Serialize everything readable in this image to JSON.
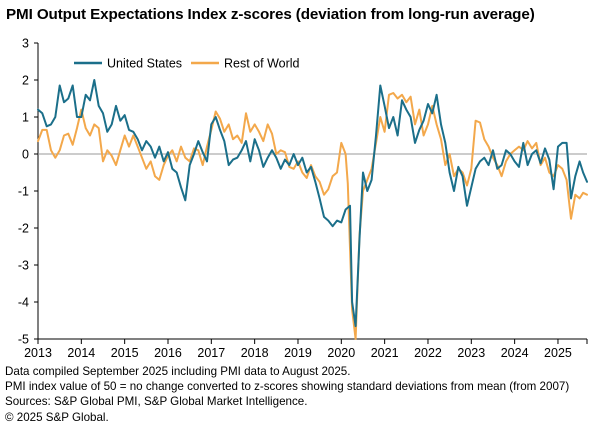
{
  "chart_data": {
    "type": "line",
    "title": "PMI Output Expectations Index z-scores (deviation from long-run average)",
    "xlabel": "",
    "ylabel": "",
    "x_ticks": [
      "2013",
      "2014",
      "2015",
      "2016",
      "2017",
      "2018",
      "2019",
      "2020",
      "2021",
      "2022",
      "2023",
      "2024",
      "2025"
    ],
    "x_start": 2013.0,
    "x_end": 2025.67,
    "ylim": [
      -5,
      3
    ],
    "y_ticks": [
      3,
      2,
      1,
      0,
      -1,
      -2,
      -3,
      -4,
      -5
    ],
    "grid": false,
    "legend_position": "top-left",
    "series": [
      {
        "name": "United States",
        "color": "#1b6f8a",
        "points": [
          [
            2013.0,
            1.2
          ],
          [
            2013.1,
            1.1
          ],
          [
            2013.2,
            0.75
          ],
          [
            2013.3,
            0.8
          ],
          [
            2013.4,
            1.0
          ],
          [
            2013.5,
            1.85
          ],
          [
            2013.6,
            1.4
          ],
          [
            2013.7,
            1.5
          ],
          [
            2013.8,
            1.85
          ],
          [
            2013.9,
            1.0
          ],
          [
            2014.0,
            1.0
          ],
          [
            2014.1,
            1.6
          ],
          [
            2014.2,
            1.45
          ],
          [
            2014.3,
            2.0
          ],
          [
            2014.4,
            1.3
          ],
          [
            2014.5,
            1.1
          ],
          [
            2014.6,
            0.6
          ],
          [
            2014.7,
            0.8
          ],
          [
            2014.8,
            1.3
          ],
          [
            2014.9,
            0.9
          ],
          [
            2015.0,
            1.05
          ],
          [
            2015.1,
            0.65
          ],
          [
            2015.2,
            0.6
          ],
          [
            2015.3,
            0.4
          ],
          [
            2015.4,
            0.1
          ],
          [
            2015.5,
            0.35
          ],
          [
            2015.6,
            0.2
          ],
          [
            2015.7,
            -0.1
          ],
          [
            2015.8,
            0.2
          ],
          [
            2015.9,
            -0.2
          ],
          [
            2016.0,
            0.05
          ],
          [
            2016.1,
            -0.4
          ],
          [
            2016.2,
            -0.5
          ],
          [
            2016.3,
            -0.9
          ],
          [
            2016.4,
            -1.25
          ],
          [
            2016.5,
            -0.3
          ],
          [
            2016.6,
            0.0
          ],
          [
            2016.7,
            0.35
          ],
          [
            2016.8,
            0.05
          ],
          [
            2016.9,
            -0.2
          ],
          [
            2017.0,
            0.8
          ],
          [
            2017.1,
            1.0
          ],
          [
            2017.2,
            0.65
          ],
          [
            2017.3,
            0.35
          ],
          [
            2017.4,
            -0.3
          ],
          [
            2017.5,
            -0.15
          ],
          [
            2017.6,
            -0.1
          ],
          [
            2017.7,
            0.1
          ],
          [
            2017.8,
            0.35
          ],
          [
            2017.9,
            -0.2
          ],
          [
            2018.0,
            0.4
          ],
          [
            2018.1,
            0.1
          ],
          [
            2018.2,
            -0.35
          ],
          [
            2018.3,
            -0.1
          ],
          [
            2018.4,
            0.1
          ],
          [
            2018.5,
            -0.1
          ],
          [
            2018.6,
            -0.4
          ],
          [
            2018.7,
            -0.15
          ],
          [
            2018.8,
            -0.3
          ],
          [
            2018.9,
            0.0
          ],
          [
            2019.0,
            -0.3
          ],
          [
            2019.1,
            -0.1
          ],
          [
            2019.2,
            -0.5
          ],
          [
            2019.3,
            -0.35
          ],
          [
            2019.4,
            -0.75
          ],
          [
            2019.5,
            -1.2
          ],
          [
            2019.6,
            -1.7
          ],
          [
            2019.7,
            -1.8
          ],
          [
            2019.8,
            -1.95
          ],
          [
            2019.9,
            -1.8
          ],
          [
            2020.0,
            -1.85
          ],
          [
            2020.1,
            -1.5
          ],
          [
            2020.2,
            -1.4
          ],
          [
            2020.25,
            -4.0
          ],
          [
            2020.33,
            -4.65
          ],
          [
            2020.42,
            -2.3
          ],
          [
            2020.5,
            -0.5
          ],
          [
            2020.6,
            -1.0
          ],
          [
            2020.7,
            -0.7
          ],
          [
            2020.8,
            0.5
          ],
          [
            2020.9,
            1.85
          ],
          [
            2021.0,
            1.3
          ],
          [
            2021.1,
            0.7
          ],
          [
            2021.2,
            1.0
          ],
          [
            2021.3,
            0.5
          ],
          [
            2021.4,
            1.45
          ],
          [
            2021.5,
            1.2
          ],
          [
            2021.6,
            1.0
          ],
          [
            2021.7,
            0.3
          ],
          [
            2021.8,
            0.65
          ],
          [
            2021.9,
            0.9
          ],
          [
            2022.0,
            1.35
          ],
          [
            2022.1,
            1.1
          ],
          [
            2022.2,
            1.6
          ],
          [
            2022.3,
            0.8
          ],
          [
            2022.4,
            0.3
          ],
          [
            2022.5,
            -0.5
          ],
          [
            2022.6,
            -1.0
          ],
          [
            2022.7,
            -0.35
          ],
          [
            2022.8,
            -0.6
          ],
          [
            2022.9,
            -1.4
          ],
          [
            2023.0,
            -0.9
          ],
          [
            2023.1,
            -0.4
          ],
          [
            2023.2,
            -0.2
          ],
          [
            2023.3,
            -0.1
          ],
          [
            2023.4,
            -0.3
          ],
          [
            2023.5,
            0.1
          ],
          [
            2023.6,
            -0.4
          ],
          [
            2023.7,
            -0.3
          ],
          [
            2023.8,
            0.1
          ],
          [
            2023.9,
            0.0
          ],
          [
            2024.0,
            -0.2
          ],
          [
            2024.1,
            -0.35
          ],
          [
            2024.2,
            0.3
          ],
          [
            2024.3,
            -0.3
          ],
          [
            2024.4,
            0.0
          ],
          [
            2024.5,
            0.1
          ],
          [
            2024.6,
            -0.25
          ],
          [
            2024.7,
            0.15
          ],
          [
            2024.8,
            -0.15
          ],
          [
            2024.9,
            -0.95
          ],
          [
            2025.0,
            0.2
          ],
          [
            2025.1,
            0.3
          ],
          [
            2025.2,
            0.3
          ],
          [
            2025.3,
            -1.2
          ],
          [
            2025.4,
            -0.6
          ],
          [
            2025.5,
            -0.2
          ],
          [
            2025.58,
            -0.5
          ],
          [
            2025.67,
            -0.75
          ]
        ]
      },
      {
        "name": "Rest of World",
        "color": "#f3a84b",
        "points": [
          [
            2013.0,
            0.35
          ],
          [
            2013.1,
            0.65
          ],
          [
            2013.2,
            0.65
          ],
          [
            2013.3,
            0.1
          ],
          [
            2013.4,
            -0.1
          ],
          [
            2013.5,
            0.1
          ],
          [
            2013.6,
            0.5
          ],
          [
            2013.7,
            0.55
          ],
          [
            2013.8,
            0.25
          ],
          [
            2013.9,
            0.7
          ],
          [
            2014.0,
            1.2
          ],
          [
            2014.1,
            0.7
          ],
          [
            2014.2,
            0.5
          ],
          [
            2014.3,
            0.8
          ],
          [
            2014.4,
            0.7
          ],
          [
            2014.5,
            -0.2
          ],
          [
            2014.6,
            0.1
          ],
          [
            2014.7,
            -0.05
          ],
          [
            2014.8,
            -0.3
          ],
          [
            2014.9,
            0.1
          ],
          [
            2015.0,
            0.5
          ],
          [
            2015.1,
            0.2
          ],
          [
            2015.2,
            0.5
          ],
          [
            2015.3,
            0.2
          ],
          [
            2015.4,
            -0.1
          ],
          [
            2015.5,
            -0.4
          ],
          [
            2015.6,
            -0.2
          ],
          [
            2015.7,
            -0.6
          ],
          [
            2015.8,
            -0.7
          ],
          [
            2015.9,
            -0.3
          ],
          [
            2016.0,
            -0.05
          ],
          [
            2016.1,
            0.1
          ],
          [
            2016.2,
            -0.2
          ],
          [
            2016.3,
            0.2
          ],
          [
            2016.4,
            -0.1
          ],
          [
            2016.5,
            -0.2
          ],
          [
            2016.6,
            0.15
          ],
          [
            2016.7,
            0.1
          ],
          [
            2016.8,
            -0.3
          ],
          [
            2016.9,
            0.2
          ],
          [
            2017.0,
            0.65
          ],
          [
            2017.1,
            1.15
          ],
          [
            2017.2,
            0.95
          ],
          [
            2017.3,
            0.6
          ],
          [
            2017.4,
            0.8
          ],
          [
            2017.5,
            0.4
          ],
          [
            2017.6,
            0.5
          ],
          [
            2017.7,
            0.3
          ],
          [
            2017.8,
            1.1
          ],
          [
            2017.9,
            0.6
          ],
          [
            2018.0,
            0.8
          ],
          [
            2018.1,
            0.6
          ],
          [
            2018.2,
            0.35
          ],
          [
            2018.3,
            0.8
          ],
          [
            2018.4,
            0.55
          ],
          [
            2018.5,
            0.0
          ],
          [
            2018.6,
            0.1
          ],
          [
            2018.7,
            0.05
          ],
          [
            2018.8,
            -0.35
          ],
          [
            2018.9,
            -0.4
          ],
          [
            2019.0,
            -0.2
          ],
          [
            2019.1,
            -0.5
          ],
          [
            2019.2,
            -0.65
          ],
          [
            2019.3,
            -0.3
          ],
          [
            2019.4,
            -0.6
          ],
          [
            2019.5,
            -0.75
          ],
          [
            2019.6,
            -1.1
          ],
          [
            2019.7,
            -0.95
          ],
          [
            2019.8,
            -0.6
          ],
          [
            2019.9,
            -0.5
          ],
          [
            2020.0,
            0.3
          ],
          [
            2020.1,
            0.0
          ],
          [
            2020.15,
            -0.8
          ],
          [
            2020.25,
            -4.2
          ],
          [
            2020.33,
            -5.0
          ],
          [
            2020.42,
            -2.2
          ],
          [
            2020.5,
            -1.0
          ],
          [
            2020.6,
            -0.7
          ],
          [
            2020.7,
            -0.4
          ],
          [
            2020.8,
            0.3
          ],
          [
            2020.9,
            1.0
          ],
          [
            2021.0,
            0.6
          ],
          [
            2021.1,
            1.6
          ],
          [
            2021.2,
            1.65
          ],
          [
            2021.3,
            1.5
          ],
          [
            2021.4,
            1.6
          ],
          [
            2021.5,
            1.4
          ],
          [
            2021.6,
            1.55
          ],
          [
            2021.7,
            0.8
          ],
          [
            2021.8,
            1.2
          ],
          [
            2021.9,
            0.5
          ],
          [
            2022.0,
            0.8
          ],
          [
            2022.1,
            1.3
          ],
          [
            2022.2,
            0.8
          ],
          [
            2022.3,
            0.4
          ],
          [
            2022.4,
            -0.3
          ],
          [
            2022.5,
            0.0
          ],
          [
            2022.6,
            -0.6
          ],
          [
            2022.7,
            -0.4
          ],
          [
            2022.8,
            -0.5
          ],
          [
            2022.9,
            -0.85
          ],
          [
            2023.0,
            -0.4
          ],
          [
            2023.1,
            0.9
          ],
          [
            2023.2,
            0.85
          ],
          [
            2023.3,
            0.4
          ],
          [
            2023.4,
            0.2
          ],
          [
            2023.5,
            -0.1
          ],
          [
            2023.6,
            -0.3
          ],
          [
            2023.7,
            -0.6
          ],
          [
            2023.8,
            -0.2
          ],
          [
            2023.9,
            0.0
          ],
          [
            2024.0,
            0.1
          ],
          [
            2024.1,
            0.2
          ],
          [
            2024.2,
            0.1
          ],
          [
            2024.3,
            0.35
          ],
          [
            2024.4,
            0.15
          ],
          [
            2024.5,
            0.3
          ],
          [
            2024.6,
            -0.3
          ],
          [
            2024.7,
            -0.1
          ],
          [
            2024.8,
            -0.5
          ],
          [
            2024.9,
            -0.6
          ],
          [
            2025.0,
            -0.3
          ],
          [
            2025.1,
            -0.4
          ],
          [
            2025.2,
            -0.7
          ],
          [
            2025.3,
            -1.75
          ],
          [
            2025.4,
            -1.1
          ],
          [
            2025.5,
            -1.2
          ],
          [
            2025.58,
            -1.05
          ],
          [
            2025.67,
            -1.1
          ]
        ]
      }
    ]
  },
  "notes": [
    "Data compiled September 2025 including PMI data to August 2025.",
    "PMI index value of 50 = no change converted to z-scores showing standard deviations from mean (from 2007)",
    "Sources: S&P Global PMI, S&P Global Market Intelligence.",
    "© 2025 S&P Global."
  ]
}
